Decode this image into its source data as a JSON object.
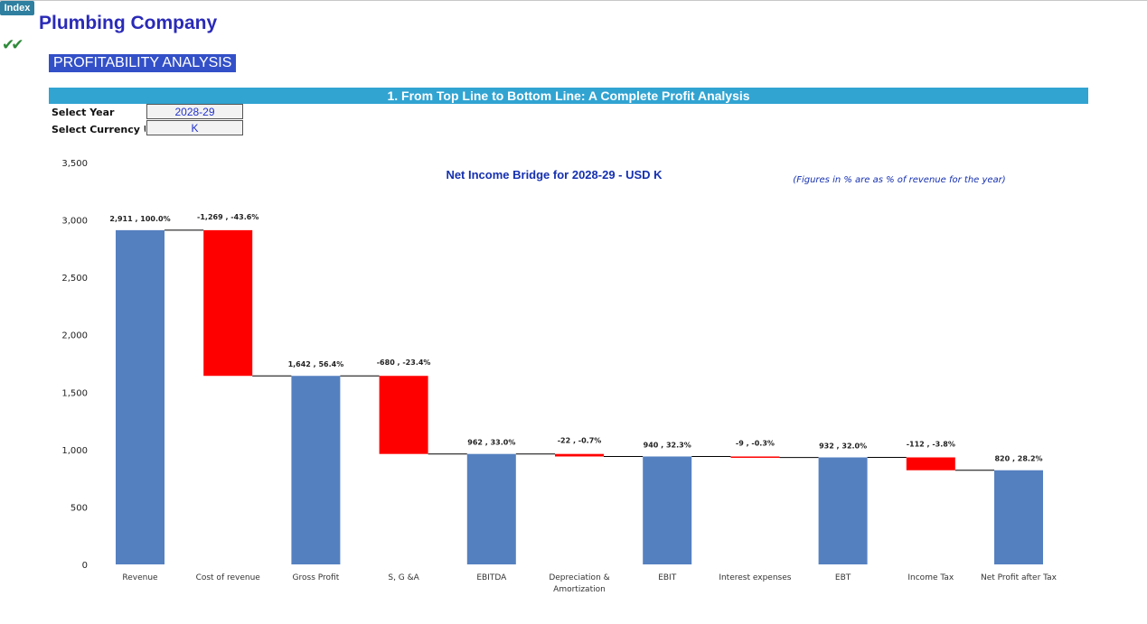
{
  "header": {
    "index_label": "Index",
    "company": "Plumbing Company",
    "check_icon": "✔✔",
    "section": "PROFITABILITY ANALYSIS",
    "banner": "1. From Top Line to Bottom Line: A Complete Profit Analysis"
  },
  "params": {
    "year_label": "Select Year",
    "year_value": "2028-29",
    "currency_label": "Select Currency Unit",
    "currency_value": "K"
  },
  "colors": {
    "total": "#5580c0",
    "negative": "#ff0000",
    "connector": "#000000"
  },
  "chart_data": {
    "type": "bar",
    "subtype": "waterfall",
    "title": "Net Income Bridge for 2028-29 - USD K",
    "note": "(Figures in % are as % of revenue for the year)",
    "ylim": [
      0,
      3500
    ],
    "yticks": [
      0,
      500,
      1000,
      1500,
      2000,
      2500,
      3000,
      3500
    ],
    "ytick_labels": [
      "0",
      "500",
      "1,000",
      "1,500",
      "2,000",
      "2,500",
      "3,000",
      "3,500"
    ],
    "grid": false,
    "categories": [
      {
        "label": [
          "Revenue"
        ],
        "kind": "total",
        "value": 2911,
        "data_label": "2,911 , 100.0%"
      },
      {
        "label": [
          "Cost of revenue"
        ],
        "kind": "negative",
        "value": -1269,
        "data_label": "-1,269 , -43.6%"
      },
      {
        "label": [
          "Gross Profit"
        ],
        "kind": "total",
        "value": 1642,
        "data_label": "1,642 , 56.4%"
      },
      {
        "label": [
          "S, G &A"
        ],
        "kind": "negative",
        "value": -680,
        "data_label": "-680 , -23.4%"
      },
      {
        "label": [
          "EBITDA"
        ],
        "kind": "total",
        "value": 962,
        "data_label": "962 , 33.0%"
      },
      {
        "label": [
          "Depreciation &",
          "Amortization"
        ],
        "kind": "negative",
        "value": -22,
        "data_label": "-22 , -0.7%"
      },
      {
        "label": [
          "EBIT"
        ],
        "kind": "total",
        "value": 940,
        "data_label": "940 , 32.3%"
      },
      {
        "label": [
          "Interest expenses"
        ],
        "kind": "negative",
        "value": -9,
        "data_label": "-9 , -0.3%"
      },
      {
        "label": [
          "EBT"
        ],
        "kind": "total",
        "value": 932,
        "data_label": "932 , 32.0%"
      },
      {
        "label": [
          "Income Tax"
        ],
        "kind": "negative",
        "value": -112,
        "data_label": "-112 , -3.8%"
      },
      {
        "label": [
          "Net Profit after Tax"
        ],
        "kind": "total",
        "value": 820,
        "data_label": "820 , 28.2%"
      }
    ]
  }
}
